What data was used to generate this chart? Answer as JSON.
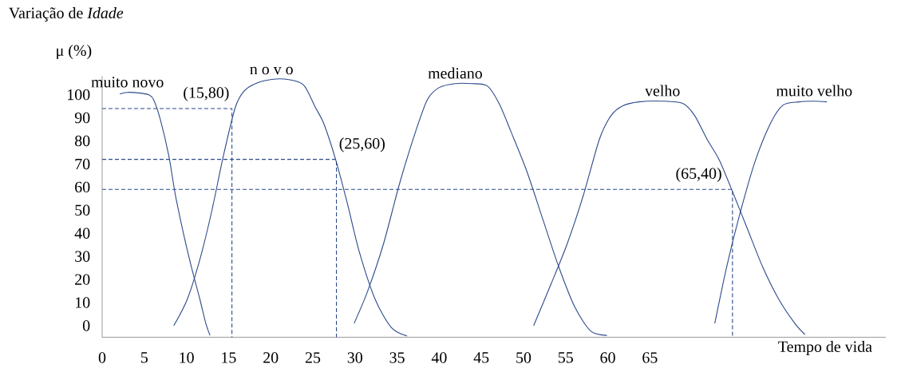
{
  "chart_data": {
    "type": "line",
    "title": "Variação de *Idade*",
    "ylabel": "μ (%)",
    "xlabel": "Tempo de vida",
    "xlim": [
      0,
      93
    ],
    "ylim": [
      -5,
      108
    ],
    "xticks": [
      0,
      5,
      10,
      15,
      20,
      25,
      30,
      35,
      40,
      45,
      50,
      55,
      60,
      65
    ],
    "yticks": [
      0,
      10,
      20,
      30,
      40,
      50,
      60,
      70,
      80,
      90,
      100
    ],
    "series": [
      {
        "name": "muito novo",
        "color": "#2b4a8b",
        "line_style": "solid",
        "x": [
          2.1,
          3.0,
          4.5,
          5.5,
          6.1,
          6.9,
          7.9,
          8.7,
          9.7,
          10.6,
          11.6,
          12.3,
          12.8
        ],
        "values": [
          100.3,
          101.0,
          100.7,
          100.0,
          97.9,
          89.3,
          73.7,
          56.4,
          39.1,
          25.3,
          11.4,
          1.0,
          -4.2
        ]
      },
      {
        "name": "n o v o",
        "color": "#2b4a8b",
        "line_style": "solid",
        "x": [
          8.5,
          10.1,
          11.6,
          13.0,
          14.4,
          15.8,
          16.8,
          18.2,
          20.1,
          22.0,
          23.9,
          25.3,
          26.3,
          27.7,
          29.1,
          30.5,
          32.4,
          34.3,
          36.2
        ],
        "values": [
          0,
          11.4,
          28.7,
          49.5,
          73.7,
          94.5,
          101.4,
          104.8,
          106.6,
          106.6,
          104.2,
          94.5,
          87.5,
          72.0,
          52.9,
          32.2,
          11.4,
          -0.7,
          -4.5
        ]
      },
      {
        "name": "mediano",
        "color": "#2b4a8b",
        "line_style": "solid",
        "x": [
          29.9,
          31.5,
          33.4,
          35.3,
          37.2,
          38.6,
          40.0,
          41.9,
          43.8,
          45.7,
          47.1,
          48.5,
          50.4,
          52.3,
          54.2,
          56.1,
          58.0,
          59.9
        ],
        "values": [
          1.0,
          14.9,
          35.6,
          61.6,
          84.1,
          97.9,
          103.1,
          104.8,
          104.8,
          103.8,
          96.2,
          84.1,
          66.8,
          46.0,
          25.3,
          8.0,
          -2.4,
          -4.2
        ]
      },
      {
        "name": "velho",
        "color": "#2b4a8b",
        "line_style": "solid",
        "x": [
          51.2,
          53.3,
          55.2,
          57.1,
          59.0,
          60.4,
          61.8,
          63.7,
          66.5,
          68.9,
          70.3,
          71.8,
          73.2,
          74.6,
          76.5,
          78.4,
          80.3,
          82.2,
          83.4
        ],
        "values": [
          0,
          18.3,
          35.6,
          56.4,
          80.6,
          91.0,
          95.2,
          96.9,
          97.2,
          96.2,
          91.0,
          80.6,
          72.0,
          59.9,
          42.6,
          25.3,
          11.4,
          1.0,
          -3.8
        ]
      },
      {
        "name": "muito velho",
        "color": "#2b4a8b",
        "line_style": "solid",
        "x": [
          72.7,
          74.1,
          75.5,
          77.4,
          79.3,
          80.8,
          82.7,
          84.5,
          86.0
        ],
        "values": [
          1.0,
          25.3,
          46.0,
          70.2,
          87.5,
          95.5,
          96.9,
          97.2,
          96.9
        ]
      },
      {
        "color": "#2b4a8b",
        "line_style": "dashed",
        "x": [
          0,
          15.4,
          15.4
        ],
        "values": [
          94,
          94,
          -5
        ]
      },
      {
        "color": "#2b4a8b",
        "line_style": "dashed",
        "x": [
          0,
          27.8,
          27.8
        ],
        "values": [
          72,
          72,
          -5
        ]
      },
      {
        "color": "#2b4a8b",
        "line_style": "dashed",
        "x": [
          0,
          74.8,
          74.8
        ],
        "values": [
          59,
          59,
          -5
        ]
      }
    ],
    "annotations": [
      {
        "text": "(15,80)",
        "x": 15.4,
        "y": 94
      },
      {
        "text": "(25,60)",
        "x": 27.8,
        "y": 72
      },
      {
        "text": "(65,40)",
        "x": 74.8,
        "y": 59
      }
    ]
  }
}
